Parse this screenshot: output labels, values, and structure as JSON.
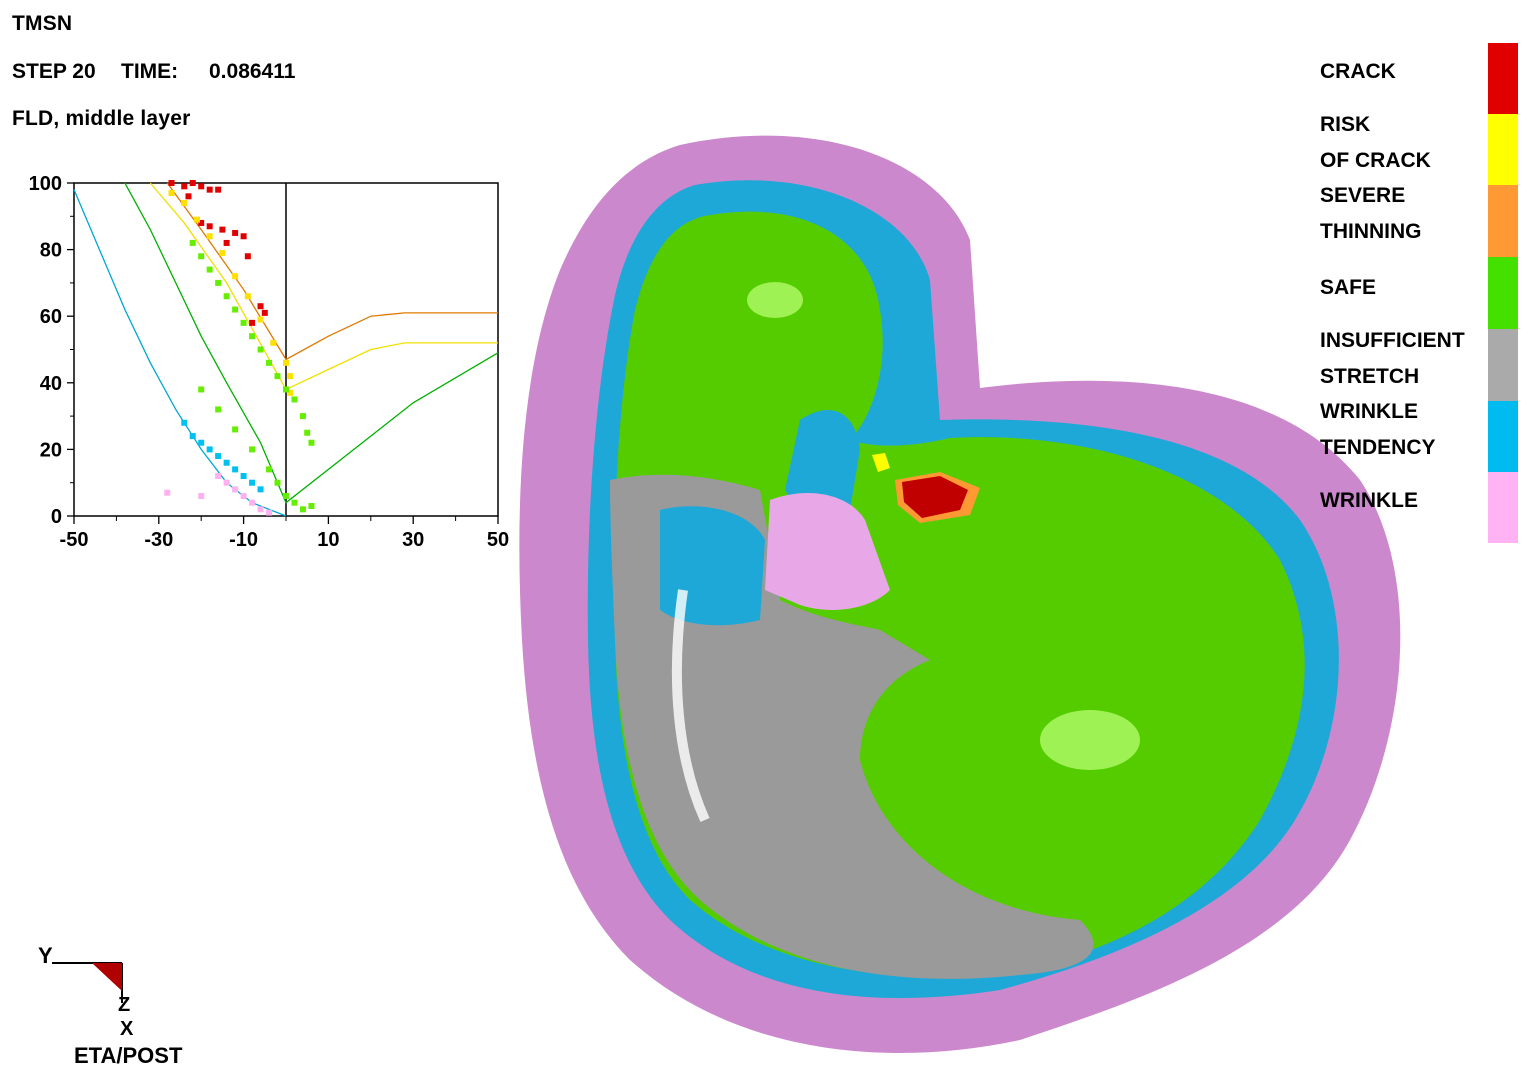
{
  "header": {
    "model_name": "TMSN",
    "step_label": "STEP 20",
    "time_label": "TIME:",
    "time_value": "0.086411",
    "result_type": "FLD, middle layer"
  },
  "fld_chart": {
    "y_ticks": [
      "100",
      "80",
      "60",
      "40",
      "20",
      "0"
    ],
    "x_ticks": [
      "-50",
      "-30",
      "-10",
      "10",
      "30",
      "50"
    ]
  },
  "chart_data": {
    "type": "scatter",
    "xlim": [
      -50,
      50
    ],
    "ylim": [
      0,
      100
    ],
    "x_ticks": [
      -50,
      -30,
      -10,
      10,
      30,
      50
    ],
    "y_ticks": [
      0,
      20,
      40,
      60,
      80,
      100
    ],
    "grid": false,
    "series": [
      {
        "color": "#e00000",
        "points": [
          [
            -27,
            100
          ],
          [
            -24,
            99
          ],
          [
            -22,
            100
          ],
          [
            -20,
            99
          ],
          [
            -18,
            98
          ],
          [
            -16,
            98
          ],
          [
            -23,
            96
          ],
          [
            -20,
            88
          ],
          [
            -18,
            87
          ],
          [
            -15,
            86
          ],
          [
            -12,
            85
          ],
          [
            -10,
            84
          ],
          [
            -14,
            82
          ],
          [
            -9,
            78
          ],
          [
            -6,
            63
          ],
          [
            -5,
            61
          ],
          [
            -8,
            58
          ]
        ]
      },
      {
        "color": "#ffe000",
        "points": [
          [
            -27,
            97
          ],
          [
            -24,
            94
          ],
          [
            -21,
            89
          ],
          [
            -18,
            84
          ],
          [
            -15,
            79
          ],
          [
            -12,
            72
          ],
          [
            -9,
            66
          ],
          [
            -6,
            59
          ],
          [
            -3,
            52
          ],
          [
            0,
            46
          ],
          [
            1,
            42
          ],
          [
            1,
            37
          ]
        ]
      },
      {
        "color": "#66ee00",
        "points": [
          [
            -22,
            82
          ],
          [
            -20,
            78
          ],
          [
            -18,
            74
          ],
          [
            -16,
            70
          ],
          [
            -14,
            66
          ],
          [
            -12,
            62
          ],
          [
            -10,
            58
          ],
          [
            -8,
            54
          ],
          [
            -6,
            50
          ],
          [
            -4,
            46
          ],
          [
            -2,
            42
          ],
          [
            0,
            38
          ],
          [
            2,
            35
          ],
          [
            4,
            30
          ],
          [
            5,
            25
          ],
          [
            6,
            22
          ],
          [
            -20,
            38
          ],
          [
            -16,
            32
          ],
          [
            -12,
            26
          ],
          [
            -8,
            20
          ],
          [
            -4,
            14
          ],
          [
            -2,
            10
          ],
          [
            0,
            6
          ],
          [
            2,
            4
          ],
          [
            4,
            2
          ],
          [
            6,
            3
          ]
        ]
      },
      {
        "color": "#00c0f0",
        "points": [
          [
            -24,
            28
          ],
          [
            -22,
            24
          ],
          [
            -20,
            22
          ],
          [
            -18,
            20
          ],
          [
            -16,
            18
          ],
          [
            -14,
            16
          ],
          [
            -12,
            14
          ],
          [
            -10,
            12
          ],
          [
            -8,
            10
          ],
          [
            -6,
            8
          ]
        ]
      },
      {
        "color": "#ffb0f0",
        "points": [
          [
            -28,
            7
          ],
          [
            -20,
            6
          ],
          [
            -16,
            12
          ],
          [
            -14,
            10
          ],
          [
            -12,
            8
          ],
          [
            -10,
            6
          ],
          [
            -8,
            4
          ],
          [
            -6,
            2
          ],
          [
            -4,
            1
          ]
        ]
      }
    ],
    "limit_curves": [
      {
        "color": "#e07800",
        "points": [
          [
            -28,
            100
          ],
          [
            -20,
            86
          ],
          [
            -10,
            68
          ],
          [
            0,
            47
          ],
          [
            10,
            54
          ],
          [
            20,
            60
          ],
          [
            28,
            61
          ],
          [
            50,
            61
          ]
        ]
      },
      {
        "color": "#f0e000",
        "points": [
          [
            -32,
            100
          ],
          [
            -24,
            88
          ],
          [
            -14,
            70
          ],
          [
            0,
            38
          ],
          [
            10,
            44
          ],
          [
            20,
            50
          ],
          [
            28,
            52
          ],
          [
            50,
            52
          ]
        ]
      },
      {
        "color": "#00b000",
        "points": [
          [
            -38,
            100
          ],
          [
            -32,
            86
          ],
          [
            -26,
            70
          ],
          [
            -20,
            54
          ],
          [
            -14,
            40
          ],
          [
            -6,
            22
          ],
          [
            0,
            4
          ],
          [
            10,
            14
          ],
          [
            20,
            24
          ],
          [
            30,
            34
          ],
          [
            50,
            49
          ]
        ]
      },
      {
        "color": "#00a8d0",
        "points": [
          [
            -50,
            98
          ],
          [
            -44,
            80
          ],
          [
            -38,
            62
          ],
          [
            -32,
            46
          ],
          [
            -26,
            32
          ],
          [
            -20,
            20
          ],
          [
            -14,
            10
          ],
          [
            -8,
            4
          ],
          [
            0,
            0
          ]
        ]
      }
    ]
  },
  "legend": [
    {
      "label_lines": [
        "CRACK"
      ],
      "color": "#e00000"
    },
    {
      "label_lines": [
        "RISK",
        "OF CRACK"
      ],
      "color": "#ffff00"
    },
    {
      "label_lines": [
        "SEVERE",
        "THINNING"
      ],
      "color": "#ff9933"
    },
    {
      "label_lines": [
        "SAFE"
      ],
      "color": "#44e000"
    },
    {
      "label_lines": [
        "INSUFFICIENT",
        "STRETCH"
      ],
      "color": "#aaaaaa"
    },
    {
      "label_lines": [
        "WRINKLE",
        "TENDENCY"
      ],
      "color": "#00bbf0"
    },
    {
      "label_lines": [
        "WRINKLE"
      ],
      "color": "#ffb3f5"
    }
  ],
  "triad": {
    "y_label": "Y",
    "z_label": "Z",
    "x_label": "X"
  },
  "footer": {
    "program_name": "ETA/POST"
  },
  "colors": {
    "flange": "#cc88cc",
    "wrinkle_tendency": "#1ea8d8",
    "safe": "#55cc00",
    "insufficient_stretch": "#9a9a9a",
    "wrinkle": "#e8a8e8",
    "crack": "#c00000"
  }
}
